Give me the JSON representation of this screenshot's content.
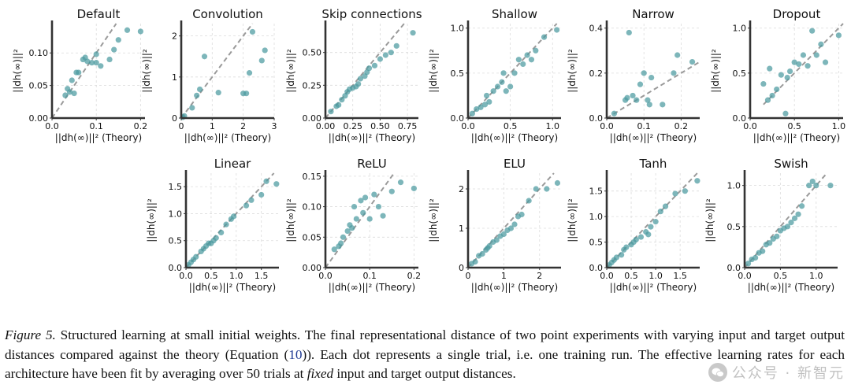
{
  "figure": {
    "xlabel": "||dh(∞)||² (Theory)",
    "ylabel": "||dh(∞)||²",
    "point_color": "#4b9aa0",
    "line_color": "#9a9a9a"
  },
  "chart_data": [
    {
      "type": "scatter",
      "title": "Default",
      "xlim": [
        0,
        0.21
      ],
      "ylim": [
        0,
        0.145
      ],
      "xticks": [
        0.0,
        0.1,
        0.2
      ],
      "xtick_labels": [
        "0.0",
        "0.1",
        "0.2"
      ],
      "yticks": [
        0.0,
        0.05,
        0.1
      ],
      "ytick_labels": [
        "0.00",
        "0.05",
        "0.10"
      ],
      "grid": true,
      "diagonal": [
        0,
        0.145
      ],
      "x": [
        0.03,
        0.035,
        0.04,
        0.045,
        0.05,
        0.055,
        0.06,
        0.07,
        0.075,
        0.08,
        0.09,
        0.1,
        0.1,
        0.11,
        0.13,
        0.14,
        0.15,
        0.17,
        0.2
      ],
      "y": [
        0.035,
        0.045,
        0.04,
        0.058,
        0.038,
        0.07,
        0.07,
        0.09,
        0.093,
        0.087,
        0.085,
        0.085,
        0.098,
        0.08,
        0.09,
        0.105,
        0.12,
        0.135,
        0.133
      ]
    },
    {
      "type": "scatter",
      "title": "Convolution",
      "xlim": [
        0,
        3
      ],
      "ylim": [
        0,
        2.3
      ],
      "xticks": [
        0,
        1,
        2,
        3
      ],
      "xtick_labels": [
        "0",
        "1",
        "2",
        "3"
      ],
      "yticks": [
        0,
        1,
        2
      ],
      "ytick_labels": [
        "0",
        "1",
        "2"
      ],
      "grid": true,
      "diagonal": [
        0,
        2.3
      ],
      "x": [
        0.05,
        0.1,
        0.35,
        0.5,
        0.6,
        0.75,
        1.2,
        2.0,
        2.1,
        2.2,
        2.3,
        2.6,
        2.7
      ],
      "y": [
        0.02,
        0.05,
        0.25,
        0.55,
        0.7,
        1.5,
        0.62,
        0.6,
        0.6,
        1.1,
        2.1,
        1.4,
        1.65
      ]
    },
    {
      "type": "scatter",
      "title": "Skip connections",
      "xlim": [
        0,
        0.85
      ],
      "ylim": [
        0,
        0.72
      ],
      "xticks": [
        0,
        0.25,
        0.5,
        0.75
      ],
      "xtick_labels": [
        "0.00",
        "0.25",
        "0.50",
        "0.75"
      ],
      "yticks": [
        0,
        0.25,
        0.5
      ],
      "ytick_labels": [
        "0.00",
        "0.25",
        "0.50"
      ],
      "grid": true,
      "diagonal": [
        0,
        0.72
      ],
      "x": [
        0.05,
        0.1,
        0.12,
        0.15,
        0.18,
        0.2,
        0.22,
        0.25,
        0.28,
        0.3,
        0.32,
        0.36,
        0.38,
        0.4,
        0.45,
        0.5,
        0.55,
        0.6,
        0.65,
        0.8
      ],
      "y": [
        0.05,
        0.09,
        0.1,
        0.14,
        0.17,
        0.2,
        0.22,
        0.23,
        0.24,
        0.26,
        0.3,
        0.32,
        0.35,
        0.38,
        0.4,
        0.45,
        0.48,
        0.5,
        0.55,
        0.65
      ]
    },
    {
      "type": "scatter",
      "title": "Shallow",
      "xlim": [
        0,
        1.1
      ],
      "ylim": [
        0,
        1.05
      ],
      "xticks": [
        0,
        0.5,
        1
      ],
      "xtick_labels": [
        "0.0",
        "0.5",
        "1.0"
      ],
      "yticks": [
        0,
        0.5,
        1
      ],
      "ytick_labels": [
        "0.0",
        "0.5",
        "1.0"
      ],
      "grid": true,
      "diagonal": [
        0,
        1.05
      ],
      "x": [
        0.05,
        0.1,
        0.15,
        0.2,
        0.22,
        0.25,
        0.3,
        0.35,
        0.4,
        0.42,
        0.45,
        0.5,
        0.55,
        0.6,
        0.65,
        0.7,
        0.75,
        0.8,
        0.9,
        1.05
      ],
      "y": [
        0.05,
        0.1,
        0.12,
        0.15,
        0.25,
        0.18,
        0.3,
        0.35,
        0.4,
        0.5,
        0.3,
        0.35,
        0.5,
        0.65,
        0.6,
        0.7,
        0.65,
        0.75,
        0.9,
        0.98
      ]
    },
    {
      "type": "scatter",
      "title": "Narrow",
      "xlim": [
        0,
        0.25
      ],
      "ylim": [
        0,
        0.42
      ],
      "xticks": [
        0,
        0.1,
        0.2
      ],
      "xtick_labels": [
        "0.0",
        "0.1",
        "0.2"
      ],
      "yticks": [
        0,
        0.2,
        0.4
      ],
      "ytick_labels": [
        "0.0",
        "0.2",
        "0.4"
      ],
      "grid": true,
      "diagonal": [
        0,
        0.25
      ],
      "x": [
        0.02,
        0.05,
        0.055,
        0.06,
        0.07,
        0.08,
        0.09,
        0.1,
        0.11,
        0.115,
        0.12,
        0.15,
        0.18,
        0.19,
        0.23
      ],
      "y": [
        0.02,
        0.08,
        0.09,
        0.38,
        0.1,
        0.08,
        0.15,
        0.2,
        0.08,
        0.06,
        0.18,
        0.06,
        0.2,
        0.28,
        0.25
      ]
    },
    {
      "type": "scatter",
      "title": "Dropout",
      "xlim": [
        0,
        1.05
      ],
      "ylim": [
        0,
        1.05
      ],
      "xticks": [
        0,
        0.5,
        1
      ],
      "xtick_labels": [
        "0.0",
        "0.5",
        "1.0"
      ],
      "yticks": [
        0,
        0.5,
        1
      ],
      "ytick_labels": [
        "0.0",
        "0.5",
        "1.0"
      ],
      "grid": true,
      "diagonal": [
        0.15,
        1.05
      ],
      "x": [
        0.15,
        0.2,
        0.22,
        0.25,
        0.3,
        0.35,
        0.4,
        0.42,
        0.45,
        0.5,
        0.55,
        0.6,
        0.65,
        0.7,
        0.75,
        0.8,
        0.85,
        1.0
      ],
      "y": [
        0.38,
        0.2,
        0.55,
        0.25,
        0.32,
        0.48,
        0.05,
        0.45,
        0.52,
        0.62,
        0.6,
        0.7,
        0.58,
        0.97,
        0.7,
        0.82,
        0.62,
        0.92
      ]
    },
    {
      "type": "scatter",
      "title": "Linear",
      "xlim": [
        0,
        1.85
      ],
      "ylim": [
        0,
        1.75
      ],
      "xticks": [
        0,
        0.5,
        1,
        1.5
      ],
      "xtick_labels": [
        "0.0",
        "0.5",
        "1.0",
        "1.5"
      ],
      "yticks": [
        0,
        0.5,
        1,
        1.5
      ],
      "ytick_labels": [
        "0.0",
        "0.5",
        "1.0",
        "1.5"
      ],
      "grid": true,
      "diagonal": [
        0,
        1.75
      ],
      "x": [
        0.05,
        0.1,
        0.15,
        0.2,
        0.3,
        0.35,
        0.4,
        0.45,
        0.5,
        0.55,
        0.6,
        0.7,
        0.8,
        0.9,
        0.95,
        1.2,
        1.3,
        1.5,
        1.6,
        1.8
      ],
      "y": [
        0.05,
        0.1,
        0.15,
        0.2,
        0.3,
        0.35,
        0.4,
        0.45,
        0.45,
        0.5,
        0.55,
        0.65,
        0.8,
        0.9,
        0.95,
        1.15,
        1.25,
        1.35,
        1.6,
        1.55
      ]
    },
    {
      "type": "scatter",
      "title": "ReLU",
      "xlim": [
        0,
        0.21
      ],
      "ylim": [
        0,
        0.155
      ],
      "xticks": [
        0,
        0.1,
        0.2
      ],
      "xtick_labels": [
        "0.0",
        "0.1",
        "0.2"
      ],
      "yticks": [
        0,
        0.05,
        0.1,
        0.15
      ],
      "ytick_labels": [
        "0.00",
        "0.05",
        "0.10",
        "0.15"
      ],
      "grid": true,
      "diagonal": [
        0,
        0.155
      ],
      "x": [
        0.02,
        0.03,
        0.035,
        0.04,
        0.05,
        0.055,
        0.06,
        0.065,
        0.07,
        0.08,
        0.085,
        0.09,
        0.1,
        0.11,
        0.12,
        0.13,
        0.15,
        0.17,
        0.2
      ],
      "y": [
        0.03,
        0.035,
        0.04,
        0.05,
        0.06,
        0.07,
        0.065,
        0.1,
        0.08,
        0.11,
        0.09,
        0.115,
        0.08,
        0.12,
        0.1,
        0.085,
        0.125,
        0.14,
        0.13
      ]
    },
    {
      "type": "scatter",
      "title": "ELU",
      "xlim": [
        0,
        2.6
      ],
      "ylim": [
        0,
        2.4
      ],
      "xticks": [
        0,
        1,
        2
      ],
      "xtick_labels": [
        "0",
        "1",
        "2"
      ],
      "yticks": [
        0,
        1,
        2
      ],
      "ytick_labels": [
        "0",
        "1",
        "2"
      ],
      "grid": true,
      "diagonal": [
        0,
        2.4
      ],
      "x": [
        0.1,
        0.2,
        0.3,
        0.4,
        0.5,
        0.55,
        0.6,
        0.7,
        0.8,
        0.9,
        1.0,
        1.1,
        1.2,
        1.3,
        1.4,
        1.5,
        1.7,
        1.9,
        2.2,
        2.5
      ],
      "y": [
        0.1,
        0.15,
        0.3,
        0.35,
        0.45,
        0.5,
        0.55,
        0.65,
        0.7,
        0.8,
        0.85,
        0.95,
        1.0,
        1.1,
        1.3,
        1.35,
        1.7,
        2.0,
        2.0,
        2.15
      ]
    },
    {
      "type": "scatter",
      "title": "Tanh",
      "xlim": [
        0,
        1.9
      ],
      "ylim": [
        0,
        1.85
      ],
      "xticks": [
        0,
        0.5,
        1,
        1.5
      ],
      "xtick_labels": [
        "0.0",
        "0.5",
        "1.0",
        "1.5"
      ],
      "yticks": [
        0,
        0.5,
        1,
        1.5
      ],
      "ytick_labels": [
        "0.0",
        "0.5",
        "1.0",
        "1.5"
      ],
      "grid": true,
      "diagonal": [
        0,
        1.85
      ],
      "x": [
        0.05,
        0.1,
        0.15,
        0.2,
        0.3,
        0.35,
        0.4,
        0.5,
        0.55,
        0.6,
        0.7,
        0.8,
        0.85,
        0.9,
        1.0,
        1.1,
        1.2,
        1.4,
        1.6,
        1.85
      ],
      "y": [
        0.05,
        0.1,
        0.15,
        0.2,
        0.25,
        0.35,
        0.4,
        0.45,
        0.5,
        0.55,
        0.6,
        0.7,
        0.65,
        0.8,
        0.9,
        1.1,
        1.2,
        1.45,
        1.5,
        1.7
      ]
    },
    {
      "type": "scatter",
      "title": "Swish",
      "xlim": [
        0,
        1.3
      ],
      "ylim": [
        0,
        1.15
      ],
      "xticks": [
        0,
        0.5,
        1
      ],
      "xtick_labels": [
        "0.0",
        "0.5",
        "1.0"
      ],
      "yticks": [
        0,
        0.5,
        1
      ],
      "ytick_labels": [
        "0.0",
        "0.5",
        "1.0"
      ],
      "grid": true,
      "diagonal": [
        0,
        1.15
      ],
      "x": [
        0.05,
        0.1,
        0.15,
        0.2,
        0.25,
        0.3,
        0.35,
        0.4,
        0.45,
        0.5,
        0.55,
        0.6,
        0.65,
        0.7,
        0.75,
        0.8,
        0.9,
        0.95,
        1.0,
        1.2
      ],
      "y": [
        0.05,
        0.1,
        0.12,
        0.18,
        0.2,
        0.28,
        0.3,
        0.35,
        0.38,
        0.45,
        0.48,
        0.5,
        0.55,
        0.6,
        0.65,
        0.75,
        1.0,
        1.05,
        1.0,
        1.0
      ]
    }
  ],
  "caption": {
    "label": "Figure 5.",
    "part1": " Structured learning at small initial weights. The final representational distance of two point experiments with varying input and target output distances compared against the theory (Equation (",
    "eq_ref": "10",
    "part2": ")). Each dot represents a single trial, i.e. one training run. The effective learning rates for each architecture have been fit by averaging over 50 trials at ",
    "emph": "fixed",
    "part3": " input and target output distances."
  },
  "watermark": {
    "text": "公众号 · 新智元"
  }
}
